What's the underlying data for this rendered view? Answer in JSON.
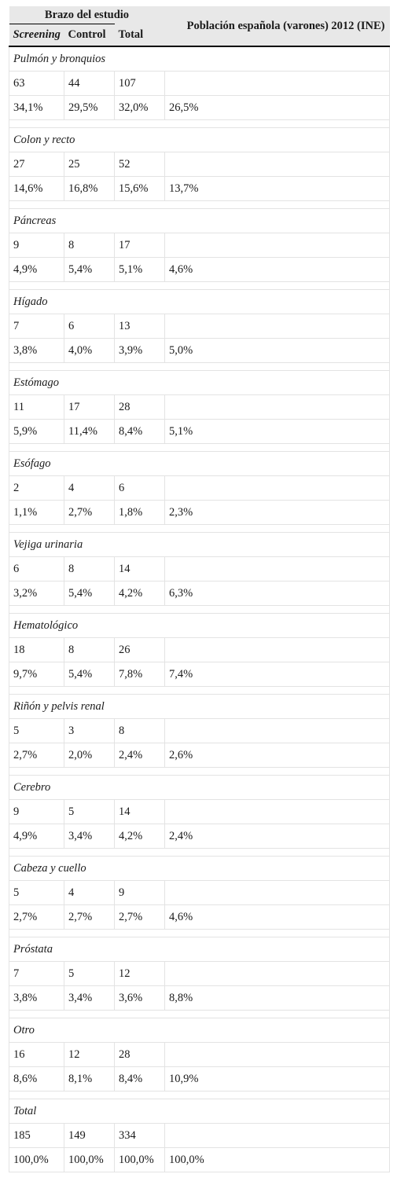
{
  "header": {
    "arm_title": "Brazo del estudio",
    "population_title": "Población española (varones) 2012 (INE)",
    "col_screening": "Screening",
    "col_control": "Control",
    "col_total": "Total"
  },
  "groups": [
    {
      "label": "Pulmón y bronquios",
      "counts": [
        "63",
        "44",
        "107",
        ""
      ],
      "percents": [
        "34,1%",
        "29,5%",
        "32,0%",
        "26,5%"
      ]
    },
    {
      "label": "Colon y recto",
      "counts": [
        "27",
        "25",
        "52",
        ""
      ],
      "percents": [
        "14,6%",
        "16,8%",
        "15,6%",
        "13,7%"
      ]
    },
    {
      "label": "Páncreas",
      "counts": [
        "9",
        "8",
        "17",
        ""
      ],
      "percents": [
        "4,9%",
        "5,4%",
        "5,1%",
        "4,6%"
      ]
    },
    {
      "label": "Hígado",
      "counts": [
        "7",
        "6",
        "13",
        ""
      ],
      "percents": [
        "3,8%",
        "4,0%",
        "3,9%",
        "5,0%"
      ]
    },
    {
      "label": "Estómago",
      "counts": [
        "11",
        "17",
        "28",
        ""
      ],
      "percents": [
        "5,9%",
        "11,4%",
        "8,4%",
        "5,1%"
      ]
    },
    {
      "label": "Esófago",
      "counts": [
        "2",
        "4",
        "6",
        ""
      ],
      "percents": [
        "1,1%",
        "2,7%",
        "1,8%",
        "2,3%"
      ]
    },
    {
      "label": "Vejiga urinaria",
      "counts": [
        "6",
        "8",
        "14",
        ""
      ],
      "percents": [
        "3,2%",
        "5,4%",
        "4,2%",
        "6,3%"
      ]
    },
    {
      "label": "Hematológico",
      "counts": [
        "18",
        "8",
        "26",
        ""
      ],
      "percents": [
        "9,7%",
        "5,4%",
        "7,8%",
        "7,4%"
      ]
    },
    {
      "label": "Riñón y pelvis renal",
      "counts": [
        "5",
        "3",
        "8",
        ""
      ],
      "percents": [
        "2,7%",
        "2,0%",
        "2,4%",
        "2,6%"
      ]
    },
    {
      "label": "Cerebro",
      "counts": [
        "9",
        "5",
        "14",
        ""
      ],
      "percents": [
        "4,9%",
        "3,4%",
        "4,2%",
        "2,4%"
      ]
    },
    {
      "label": "Cabeza y cuello",
      "counts": [
        "5",
        "4",
        "9",
        ""
      ],
      "percents": [
        "2,7%",
        "2,7%",
        "2,7%",
        "4,6%"
      ]
    },
    {
      "label": "Próstata",
      "counts": [
        "7",
        "5",
        "12",
        ""
      ],
      "percents": [
        "3,8%",
        "3,4%",
        "3,6%",
        "8,8%"
      ]
    },
    {
      "label": "Otro",
      "counts": [
        "16",
        "12",
        "28",
        ""
      ],
      "percents": [
        "8,6%",
        "8,1%",
        "8,4%",
        "10,9%"
      ]
    },
    {
      "label": "Total",
      "counts": [
        "185",
        "149",
        "334",
        ""
      ],
      "percents": [
        "100,0%",
        "100,0%",
        "100,0%",
        "100,0%"
      ]
    }
  ]
}
